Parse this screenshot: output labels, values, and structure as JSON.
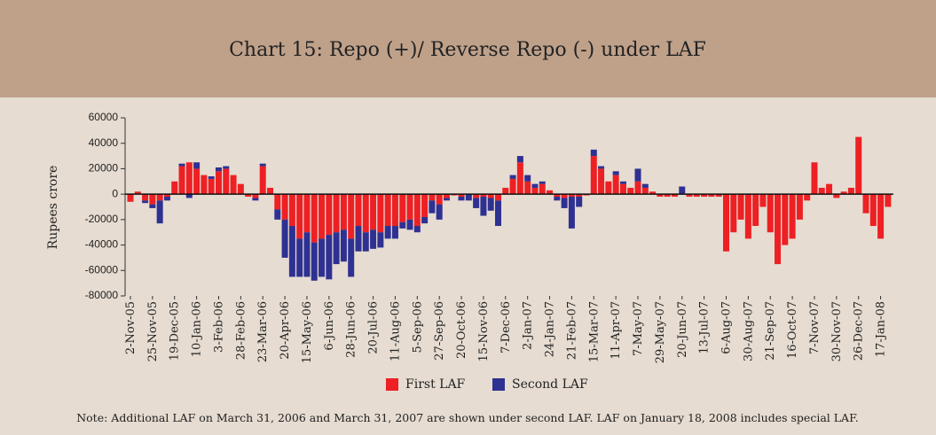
{
  "chart_data": {
    "type": "stacked_bar",
    "title": "Chart 15: Repo (+)/ Reverse Repo (-) under LAF",
    "y_label": "Rupees crore",
    "note": "Note: Additional LAF on March 31, 2006 and March 31, 2007 are shown under second LAF. LAF on January 18, 2008 includes special LAF.",
    "categories": [
      "2-Nov-05",
      null,
      null,
      "25-Nov-05",
      null,
      null,
      "19-Dec-05",
      null,
      null,
      "10-Jan-06",
      null,
      null,
      "3-Feb-06",
      null,
      null,
      "28-Feb-06",
      null,
      null,
      "23-Mar-06",
      null,
      null,
      "20-Apr-06",
      null,
      null,
      "15-May-06",
      null,
      null,
      "6-Jun-06",
      null,
      null,
      "28-Jun-06",
      null,
      null,
      "20-Jul-06",
      null,
      null,
      "11-Aug-06",
      null,
      null,
      "5-Sep-06",
      null,
      null,
      "27-Sep-06",
      null,
      null,
      "20-Oct-06",
      null,
      null,
      "15-Nov-06",
      null,
      null,
      "7-Dec-06",
      null,
      null,
      "2-Jan-07",
      null,
      null,
      "24-Jan-07",
      null,
      null,
      "21-Feb-07",
      null,
      null,
      "15-Mar-07",
      null,
      null,
      "11-Apr-07",
      null,
      null,
      "7-May-07",
      null,
      null,
      "29-May-07",
      null,
      null,
      "20-Jun-07",
      null,
      null,
      "13-Jul-07",
      null,
      null,
      "6-Aug-07",
      null,
      null,
      "30-Aug-07",
      null,
      null,
      "21-Sep-07",
      null,
      null,
      "16-Oct-07",
      null,
      null,
      "7-Nov-07",
      null,
      null,
      "30-Nov-07",
      null,
      null,
      "26-Dec-07",
      null,
      null,
      "17-Jan-08",
      null
    ],
    "series": [
      {
        "name": "First LAF",
        "color": "#ed2024",
        "values": [
          -6000,
          2000,
          -5000,
          -8000,
          -5000,
          -2000,
          10000,
          22000,
          25000,
          20000,
          15000,
          12000,
          18000,
          20000,
          15000,
          8000,
          -2000,
          -3000,
          22000,
          5000,
          -12000,
          -20000,
          -25000,
          -35000,
          -30000,
          -38000,
          -35000,
          -32000,
          -30000,
          -28000,
          -35000,
          -25000,
          -30000,
          -28000,
          -30000,
          -25000,
          -25000,
          -22000,
          -20000,
          -25000,
          -18000,
          -5000,
          -8000,
          -3000,
          -1000,
          -2000,
          0,
          -3000,
          -2000,
          -3000,
          -5000,
          5000,
          12000,
          25000,
          10000,
          5000,
          8000,
          3000,
          -2000,
          -3000,
          -2000,
          -2000,
          -1000,
          30000,
          20000,
          10000,
          15000,
          8000,
          5000,
          10000,
          5000,
          2000,
          -2000,
          -2000,
          -2000,
          0,
          -2000,
          -2000,
          -2000,
          -2000,
          -2000,
          -45000,
          -30000,
          -20000,
          -35000,
          -25000,
          -10000,
          -30000,
          -55000,
          -40000,
          -35000,
          -20000,
          -5000,
          25000,
          5000,
          8000,
          -3000,
          2000,
          5000,
          45000,
          -15000,
          -25000,
          -35000,
          -10000
        ]
      },
      {
        "name": "Second LAF",
        "color": "#2e3192",
        "values": [
          0,
          0,
          -2000,
          -3000,
          -18000,
          -3000,
          0,
          2000,
          -3000,
          5000,
          0,
          2000,
          3000,
          2000,
          0,
          0,
          0,
          -2000,
          2000,
          0,
          -8000,
          -30000,
          -40000,
          -30000,
          -35000,
          -30000,
          -30000,
          -35000,
          -25000,
          -25000,
          -30000,
          -20000,
          -15000,
          -15000,
          -12000,
          -10000,
          -10000,
          -5000,
          -8000,
          -5000,
          -5000,
          -10000,
          -12000,
          -2000,
          0,
          -3000,
          -5000,
          -8000,
          -15000,
          -10000,
          -20000,
          0,
          3000,
          5000,
          5000,
          3000,
          2000,
          0,
          -3000,
          -8000,
          -25000,
          -8000,
          0,
          5000,
          2000,
          0,
          3000,
          2000,
          0,
          10000,
          3000,
          0,
          0,
          0,
          0,
          6000,
          0,
          0,
          0,
          0,
          0,
          0,
          0,
          0,
          0,
          0,
          0,
          0,
          0,
          0,
          0,
          0,
          0,
          0,
          0,
          0,
          0,
          0,
          0,
          0,
          0,
          0,
          0,
          0
        ]
      }
    ],
    "ylim": [
      -80000,
      60000
    ],
    "yticks": [
      -80000,
      -60000,
      -40000,
      -20000,
      0,
      20000,
      40000,
      60000
    ]
  }
}
